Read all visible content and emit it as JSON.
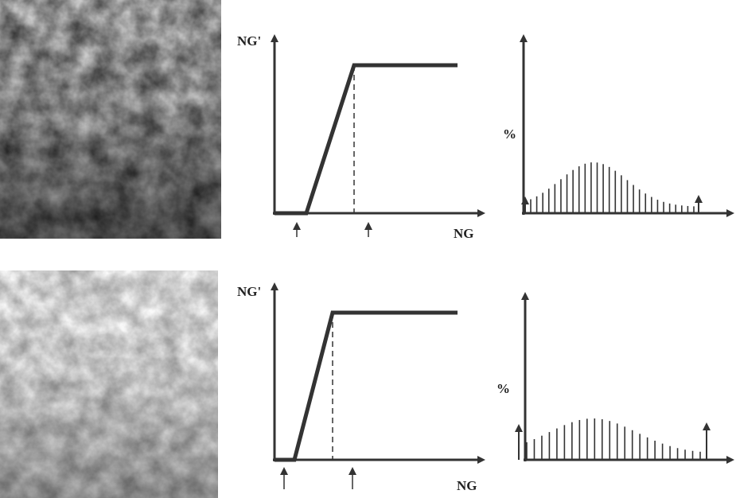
{
  "panels": [
    {
      "graph": {
        "y_label": "NG'",
        "x_label": "NG"
      },
      "histogram": {
        "y_label": "%"
      }
    },
    {
      "graph": {
        "y_label": "NG'",
        "x_label": "NG"
      },
      "histogram": {
        "y_label": "%"
      }
    }
  ]
}
